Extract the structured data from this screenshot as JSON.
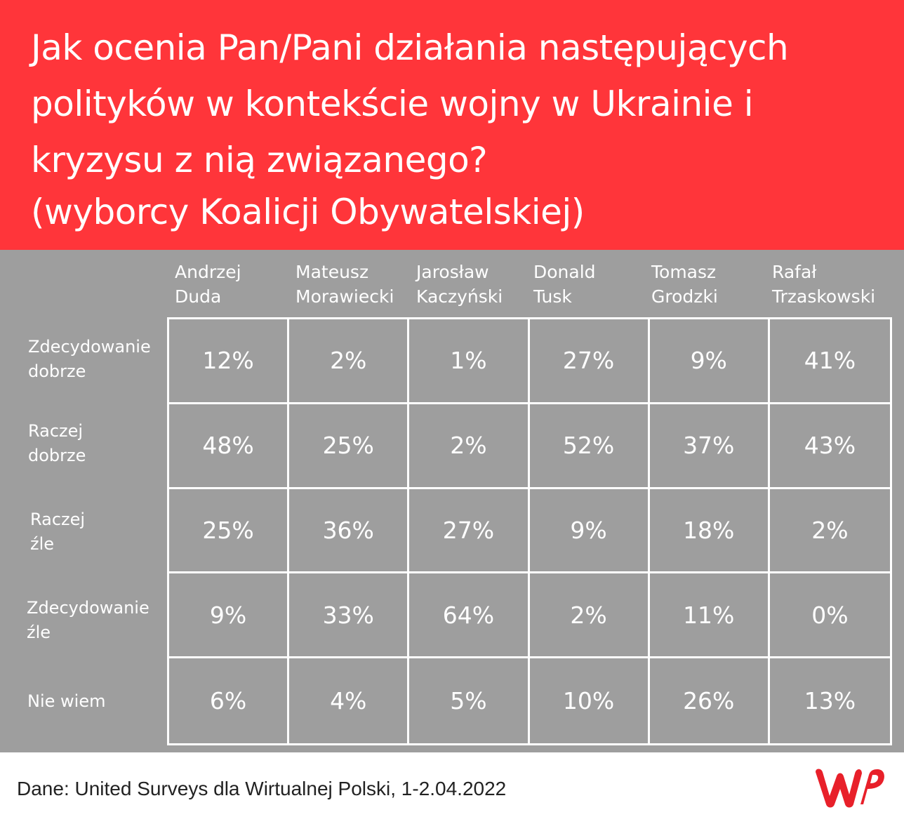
{
  "title_lines": [
    "Jak ocenia Pan/Pani działania następujących",
    "polityków w kontekście wojny w Ukrainie i",
    "kryzysu z nią związanego?",
    "(wyborcy Koalicji Obywatelskiej)"
  ],
  "colors": {
    "header": "#ff353a",
    "panel": "#9e9e9e",
    "text": "#ffffff",
    "logo": "#e8202a"
  },
  "chart_data": {
    "type": "table",
    "columns": [
      [
        "Andrzej",
        "Duda"
      ],
      [
        "Mateusz",
        "Morawiecki"
      ],
      [
        "Jarosław",
        "Kaczyński"
      ],
      [
        "Donald",
        "Tusk"
      ],
      [
        "Tomasz",
        "Grodzki"
      ],
      [
        "Rafał",
        "Trzaskowski"
      ]
    ],
    "rows": [
      {
        "label": [
          "Zdecydowanie",
          "dobrze"
        ],
        "values": [
          "12%",
          "2%",
          "1%",
          "27%",
          "9%",
          "41%"
        ]
      },
      {
        "label": [
          "Raczej",
          "dobrze"
        ],
        "values": [
          "48%",
          "25%",
          "2%",
          "52%",
          "37%",
          "43%"
        ]
      },
      {
        "label": [
          "Raczej",
          "źle"
        ],
        "values": [
          "25%",
          "36%",
          "27%",
          "9%",
          "18%",
          "2%"
        ]
      },
      {
        "label": [
          "Zdecydowanie",
          "źle"
        ],
        "values": [
          "9%",
          "33%",
          "64%",
          "2%",
          "11%",
          "0%"
        ]
      },
      {
        "label": [
          "Nie wiem"
        ],
        "values": [
          "6%",
          "4%",
          "5%",
          "10%",
          "26%",
          "13%"
        ]
      }
    ]
  },
  "source": "Dane: United Surveys dla Wirtualnej Polski, 1-2.04.2022",
  "logo": {
    "icon": "wp-logo-icon"
  }
}
